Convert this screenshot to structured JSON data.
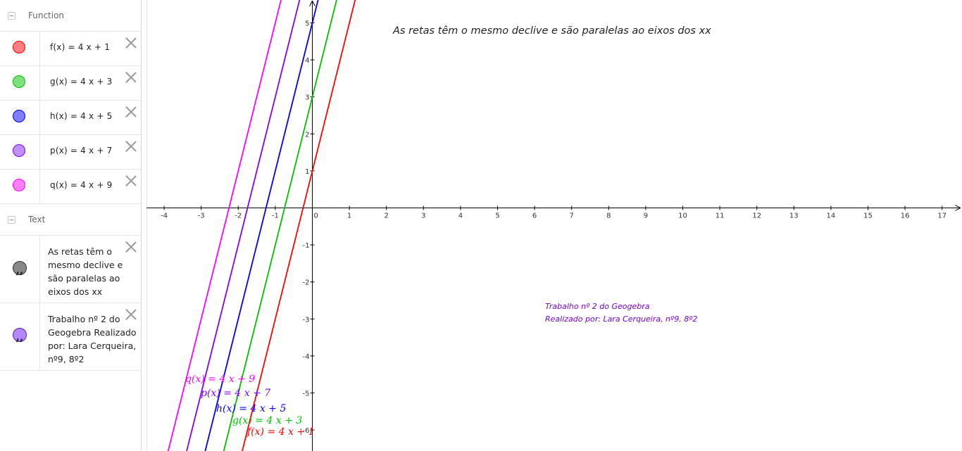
{
  "algebra": {
    "function_group": {
      "label": "Function"
    },
    "functions": [
      {
        "name": "f",
        "expr": "f(x)  =  4 x + 1",
        "color": "#ff0000",
        "fill": "#ff8080",
        "graph_label": "f(x)  =  4 x + 1"
      },
      {
        "name": "g",
        "expr": "g(x)  =  4 x + 3",
        "color": "#00c000",
        "fill": "#80e080",
        "graph_label": "g(x)  =  4 x + 3"
      },
      {
        "name": "h",
        "expr": "h(x)  =  4 x + 5",
        "color": "#0000ff",
        "fill": "#8080ff",
        "graph_label": "h(x)  =  4 x + 5"
      },
      {
        "name": "p",
        "expr": "p(x)  =  4 x + 7",
        "color": "#8000ff",
        "fill": "#c090ff",
        "graph_label": "p(x)  =  4 x + 7"
      },
      {
        "name": "q",
        "expr": "q(x)  =  4 x + 9",
        "color": "#ff00ff",
        "fill": "#ff80ff",
        "graph_label": "q(x)  =  4 x + 9"
      }
    ],
    "text_group": {
      "label": "Text"
    },
    "texts": [
      {
        "text": "As retas têm o mesmo declive e são paralelas ao eixos dos xx",
        "fill": "#888888",
        "border": "#333333"
      },
      {
        "text": "Trabalho nº 2 do Geogebra Realizado por: Lara Cerqueira, nº9, 8º2",
        "fill": "#b388ff",
        "border": "#5a1fa6"
      }
    ]
  },
  "graph": {
    "title_text": "As retas têm o mesmo declive e são paralelas ao eixos dos xx",
    "note_line1": "Trabalho nº 2 do Geogebra",
    "note_line2": "Realizado por: Lara Cerqueira, nº9, 8º2",
    "note_color": "#7a00d6",
    "x_ticks": [
      "-4",
      "-3",
      "-2",
      "-1",
      "0",
      "1",
      "2",
      "3",
      "4",
      "5",
      "6",
      "7",
      "8",
      "9",
      "10",
      "11",
      "12",
      "13",
      "14",
      "15",
      "16",
      "17"
    ],
    "y_ticks": [
      "5",
      "4",
      "3",
      "2",
      "1",
      "-1",
      "-2",
      "-3",
      "-4",
      "-5",
      "-6"
    ]
  }
}
